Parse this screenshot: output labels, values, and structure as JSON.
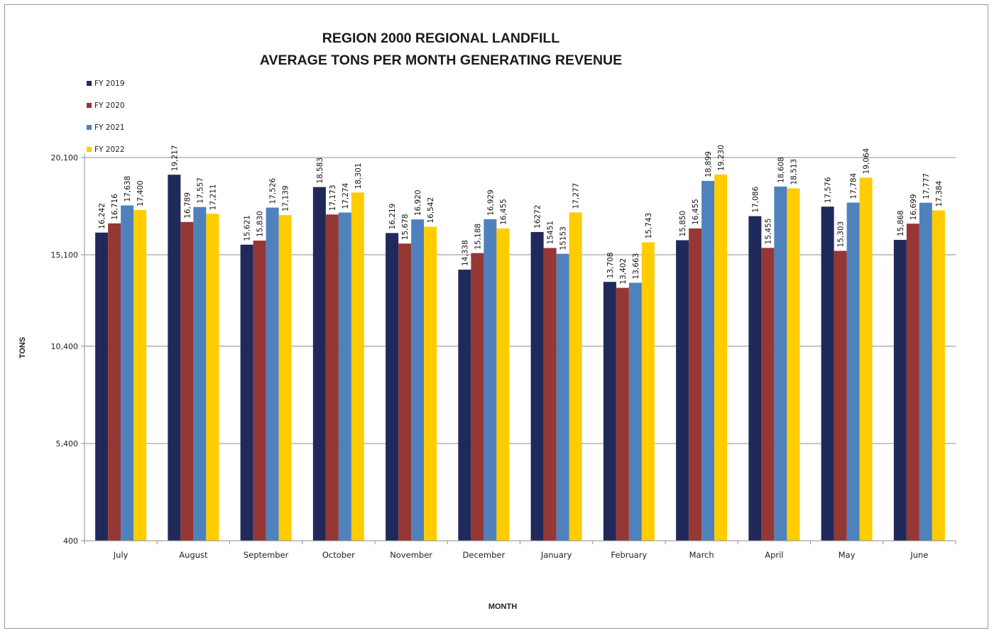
{
  "chart_data": {
    "type": "bar",
    "title": [
      "REGION 2000 REGIONAL LANDFILL",
      "AVERAGE TONS PER MONTH GENERATING REVENUE"
    ],
    "xlabel": "MONTH",
    "ylabel": "TONS",
    "ylim": [
      400,
      20100
    ],
    "yticks": [
      400,
      5400,
      10400,
      15100,
      20100
    ],
    "ytick_labels": [
      "400",
      "5,400",
      "10,400",
      "15,100",
      "20,100"
    ],
    "grid": true,
    "legend_position": "top-left",
    "categories": [
      "July",
      "August",
      "September",
      "October",
      "November",
      "December",
      "January",
      "February",
      "March",
      "April",
      "May",
      "June"
    ],
    "series": [
      {
        "name": "FY 2019",
        "color": "#1f2a5a",
        "values": [
          16242,
          19217,
          15621,
          18583,
          16219,
          14338,
          16272,
          13708,
          15850,
          17086,
          17576,
          15868
        ],
        "labels": [
          "16,242",
          "19,217",
          "15,621",
          "18,583",
          "16,219",
          "14,338",
          "16272",
          "13,708",
          "15,850",
          "17,086",
          "17,576",
          "15,868"
        ]
      },
      {
        "name": "FY 2020",
        "color": "#953735",
        "values": [
          16716,
          16789,
          15830,
          17173,
          15678,
          15188,
          15451,
          13402,
          16455,
          15455,
          15303,
          16699
        ],
        "labels": [
          "16,716",
          "16,789",
          "15,830",
          "17,173",
          "15,678",
          "15,188",
          "15451",
          "13,402",
          "16,455",
          "15,455",
          "15,303",
          "16,699"
        ]
      },
      {
        "name": "FY 2021",
        "color": "#4f81bd",
        "values": [
          17638,
          17557,
          17526,
          17274,
          16920,
          16929,
          15153,
          13663,
          18899,
          18608,
          17784,
          17777
        ],
        "labels": [
          "17,638",
          "17,557",
          "17,526",
          "17,274",
          "16,920",
          "16,929",
          "15153",
          "13,663",
          "18,899",
          "18,608",
          "17,784",
          "17,777"
        ]
      },
      {
        "name": "FY 2022",
        "color": "#ffcc00",
        "values": [
          17400,
          17211,
          17139,
          18301,
          16542,
          16455,
          17277,
          15743,
          19230,
          18513,
          19064,
          17384
        ],
        "labels": [
          "17,400",
          "17,211",
          "17,139",
          "18,301",
          "16,542",
          "16,455",
          "17,277",
          "15,743",
          "19,230",
          "18,513",
          "19,064",
          "17,384"
        ]
      }
    ]
  }
}
